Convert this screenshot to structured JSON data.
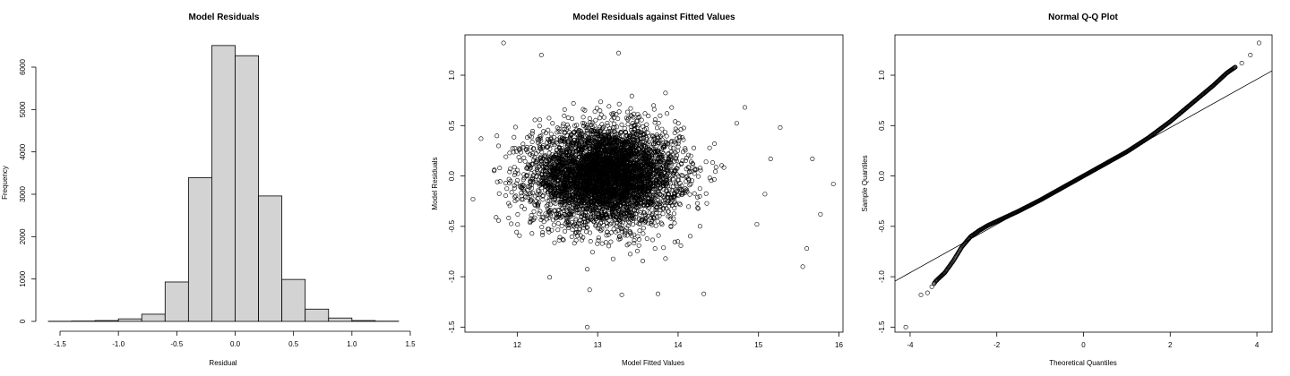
{
  "chart_data": [
    {
      "type": "bar",
      "title": "Model Residuals",
      "xlabel": "Residual",
      "ylabel": "Frequency",
      "xlim": [
        -1.6,
        1.4
      ],
      "ylim": [
        0,
        6500
      ],
      "xticks": [
        -1.5,
        -1.0,
        -0.5,
        0.0,
        0.5,
        1.0,
        1.5
      ],
      "xtick_labels": [
        "-1.5",
        "-1.0",
        "-0.5",
        "0.0",
        "0.5",
        "1.0",
        "1.5"
      ],
      "yticks": [
        0,
        1000,
        2000,
        3000,
        4000,
        5000,
        6000
      ],
      "ytick_labels": [
        "0",
        "1000",
        "2000",
        "3000",
        "4000",
        "5000",
        "6000"
      ],
      "bins": [
        {
          "x0": -1.6,
          "x1": -1.4,
          "count": 3
        },
        {
          "x0": -1.4,
          "x1": -1.2,
          "count": 8
        },
        {
          "x0": -1.2,
          "x1": -1.0,
          "count": 20
        },
        {
          "x0": -1.0,
          "x1": -0.8,
          "count": 60
        },
        {
          "x0": -0.8,
          "x1": -0.6,
          "count": 170
        },
        {
          "x0": -0.6,
          "x1": -0.4,
          "count": 930
        },
        {
          "x0": -0.4,
          "x1": -0.2,
          "count": 3390
        },
        {
          "x0": -0.2,
          "x1": 0.0,
          "count": 6510
        },
        {
          "x0": 0.0,
          "x1": 0.2,
          "count": 6270
        },
        {
          "x0": 0.2,
          "x1": 0.4,
          "count": 2960
        },
        {
          "x0": 0.4,
          "x1": 0.6,
          "count": 990
        },
        {
          "x0": 0.6,
          "x1": 0.8,
          "count": 290
        },
        {
          "x0": 0.8,
          "x1": 1.0,
          "count": 80
        },
        {
          "x0": 1.0,
          "x1": 1.2,
          "count": 20
        },
        {
          "x0": 1.2,
          "x1": 1.4,
          "count": 5
        }
      ]
    },
    {
      "type": "scatter",
      "title": "Model Residuals against Fitted Values",
      "xlabel": "Model Fitted Values",
      "ylabel": "Model Residuals",
      "xlim": [
        11.35,
        16.05
      ],
      "ylim": [
        -1.55,
        1.4
      ],
      "xticks": [
        12,
        13,
        14,
        15,
        16
      ],
      "xtick_labels": [
        "12",
        "13",
        "14",
        "15",
        "16"
      ],
      "yticks": [
        -1.5,
        -1.0,
        -0.5,
        0.0,
        0.5,
        1.0
      ],
      "ytick_labels": [
        "-1.5",
        "-1.0",
        "-0.5",
        "0.0",
        "0.5",
        "1.0"
      ],
      "n_points": 20000,
      "fitted_mean": 13.1,
      "fitted_sd": 0.45,
      "residual_mean": 0.0,
      "residual_sd": 0.24,
      "outliers": [
        [
          11.45,
          -0.23
        ],
        [
          11.55,
          0.37
        ],
        [
          11.83,
          1.32
        ],
        [
          12.87,
          -1.5
        ],
        [
          13.26,
          1.22
        ],
        [
          12.3,
          1.2
        ],
        [
          15.93,
          -0.08
        ],
        [
          15.67,
          0.17
        ],
        [
          15.77,
          -0.38
        ],
        [
          15.6,
          -0.72
        ],
        [
          15.55,
          -0.9
        ],
        [
          14.32,
          -1.17
        ],
        [
          13.75,
          -1.17
        ],
        [
          13.3,
          -1.18
        ],
        [
          12.9,
          -1.13
        ],
        [
          15.27,
          0.48
        ],
        [
          14.83,
          0.68
        ],
        [
          14.98,
          -0.48
        ],
        [
          15.15,
          0.17
        ],
        [
          15.08,
          -0.18
        ]
      ]
    },
    {
      "type": "scatter",
      "title": "Normal Q-Q Plot",
      "xlabel": "Theoretical Quantiles",
      "ylabel": "Sample Quantiles",
      "xlim": [
        -4.35,
        4.35
      ],
      "ylim": [
        -1.55,
        1.4
      ],
      "xticks": [
        -4,
        -2,
        0,
        2,
        4
      ],
      "xtick_labels": [
        "-4",
        "-2",
        "0",
        "2",
        "4"
      ],
      "yticks": [
        -1.5,
        -1.0,
        -0.5,
        0.0,
        0.5,
        1.0
      ],
      "ytick_labels": [
        "-1.5",
        "-1.0",
        "-0.5",
        "0.0",
        "0.5",
        "1.0"
      ],
      "reference_line": {
        "intercept": 0.0,
        "slope": 0.24
      },
      "qq_points": [
        [
          -4.1,
          -1.5
        ],
        [
          -3.75,
          -1.18
        ],
        [
          -3.6,
          -1.16
        ],
        [
          -3.5,
          -1.1
        ],
        [
          -3.4,
          -1.04
        ],
        [
          -3.2,
          -0.96
        ],
        [
          -3.0,
          -0.84
        ],
        [
          -2.8,
          -0.7
        ],
        [
          -2.6,
          -0.6
        ],
        [
          -2.4,
          -0.54
        ],
        [
          -2.2,
          -0.49
        ],
        [
          -2.0,
          -0.45
        ],
        [
          -1.5,
          -0.35
        ],
        [
          -1.0,
          -0.24
        ],
        [
          -0.5,
          -0.12
        ],
        [
          0.0,
          0.0
        ],
        [
          0.5,
          0.12
        ],
        [
          1.0,
          0.24
        ],
        [
          1.5,
          0.38
        ],
        [
          2.0,
          0.54
        ],
        [
          2.5,
          0.72
        ],
        [
          3.0,
          0.9
        ],
        [
          3.3,
          1.02
        ],
        [
          3.5,
          1.08
        ],
        [
          3.65,
          1.12
        ],
        [
          3.85,
          1.2
        ],
        [
          4.05,
          1.32
        ]
      ]
    }
  ]
}
